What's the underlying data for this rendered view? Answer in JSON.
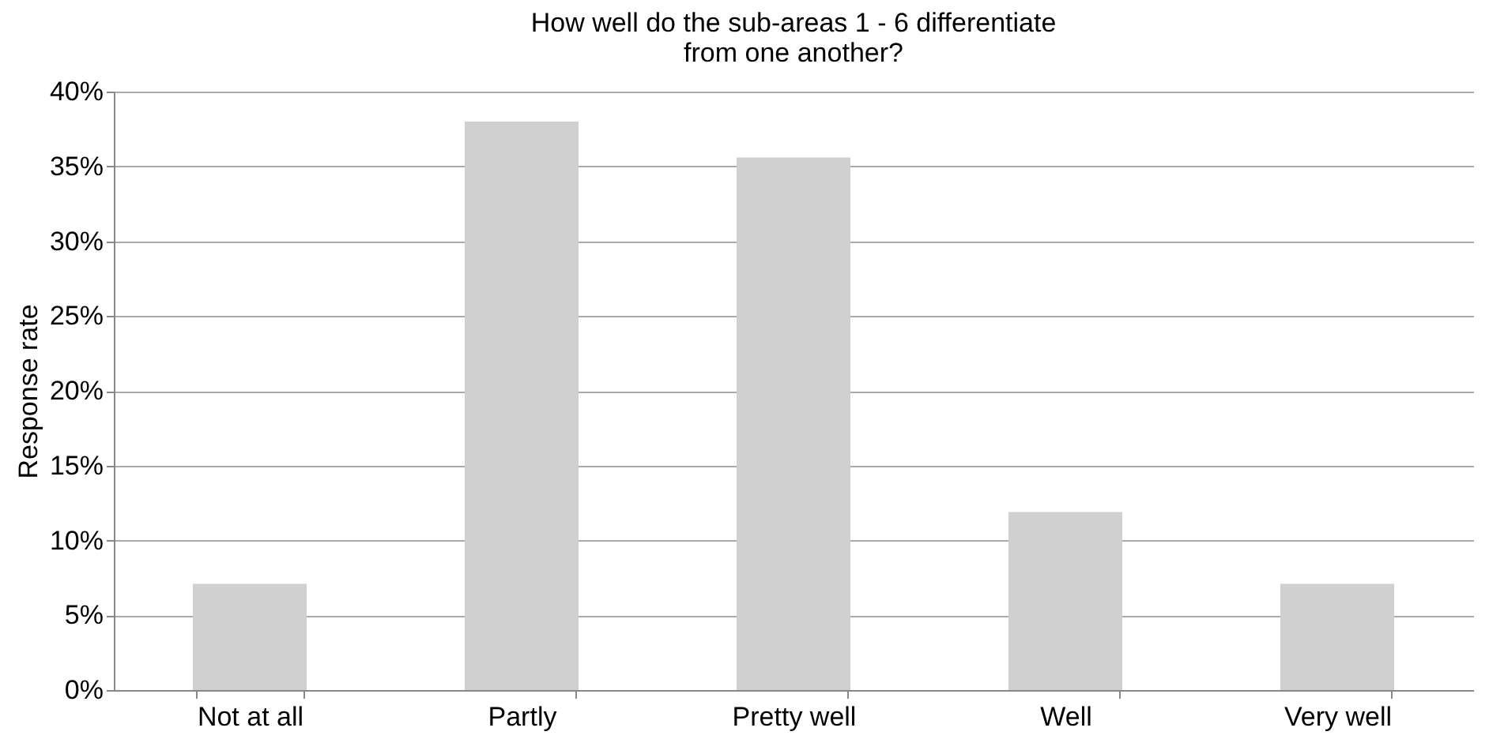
{
  "chart_data": {
    "type": "bar",
    "title": [
      "How well do the sub-areas 1 - 6 differentiate",
      "from one another?"
    ],
    "ylabel": "Response rate",
    "categories": [
      "Not at all",
      "Partly",
      "Pretty well",
      "Well",
      "Very well"
    ],
    "values": [
      7.1,
      38.0,
      35.6,
      11.9,
      7.1
    ],
    "color": "#d0d0d0",
    "ylim": [
      0,
      40
    ],
    "yticks": [
      {
        "value": 0,
        "label": "0%"
      },
      {
        "value": 5,
        "label": "5%"
      },
      {
        "value": 10,
        "label": "10%"
      },
      {
        "value": 15,
        "label": "15%"
      },
      {
        "value": 20,
        "label": "20%"
      },
      {
        "value": 25,
        "label": "25%"
      },
      {
        "value": 30,
        "label": "30%"
      },
      {
        "value": 35,
        "label": "35%"
      },
      {
        "value": 40,
        "label": "40%"
      }
    ],
    "grid": "y"
  }
}
